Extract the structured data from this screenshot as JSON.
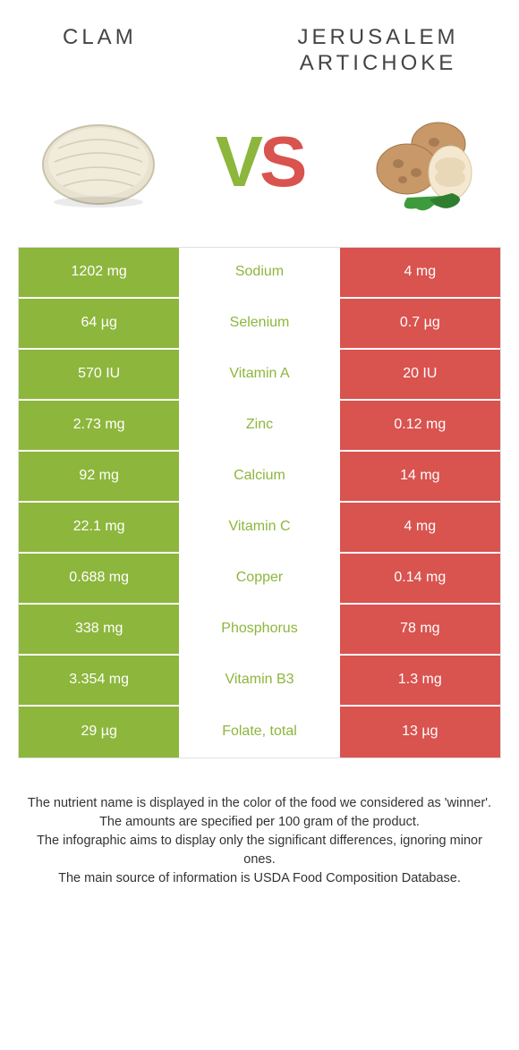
{
  "colors": {
    "green": "#8db63c",
    "red": "#d9534f",
    "white": "#ffffff",
    "text": "#444444"
  },
  "header": {
    "left": "Clam",
    "right": "Jerusalem artichoke"
  },
  "vs": {
    "v": "V",
    "s": "S",
    "v_color": "#8db63c",
    "s_color": "#d9534f"
  },
  "rows": [
    {
      "left": "1202 mg",
      "mid": "Sodium",
      "right": "4 mg",
      "winner": "left"
    },
    {
      "left": "64 µg",
      "mid": "Selenium",
      "right": "0.7 µg",
      "winner": "left"
    },
    {
      "left": "570 IU",
      "mid": "Vitamin A",
      "right": "20 IU",
      "winner": "left"
    },
    {
      "left": "2.73 mg",
      "mid": "Zinc",
      "right": "0.12 mg",
      "winner": "left"
    },
    {
      "left": "92 mg",
      "mid": "Calcium",
      "right": "14 mg",
      "winner": "left"
    },
    {
      "left": "22.1 mg",
      "mid": "Vitamin C",
      "right": "4 mg",
      "winner": "left"
    },
    {
      "left": "0.688 mg",
      "mid": "Copper",
      "right": "0.14 mg",
      "winner": "left"
    },
    {
      "left": "338 mg",
      "mid": "Phosphorus",
      "right": "78 mg",
      "winner": "left"
    },
    {
      "left": "3.354 mg",
      "mid": "Vitamin B3",
      "right": "1.3 mg",
      "winner": "left"
    },
    {
      "left": "29 µg",
      "mid": "Folate, total",
      "right": "13 µg",
      "winner": "left"
    }
  ],
  "footnotes": [
    "The nutrient name is displayed in the color of the food we considered as 'winner'.",
    "The amounts are specified per 100 gram of the product.",
    "The infographic aims to display only the significant differences, ignoring minor ones.",
    "The main source of information is USDA Food Composition Database."
  ]
}
